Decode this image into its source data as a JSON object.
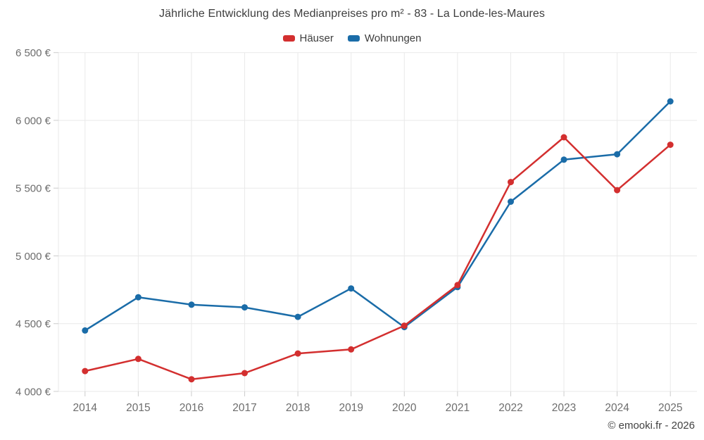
{
  "footer": {
    "text": "© emooki.fr - 2026"
  },
  "chart_data": {
    "type": "line",
    "title": "Jährliche Entwicklung des Medianpreises pro m² - 83 - La Londe-les-Maures",
    "categories": [
      "2014",
      "2015",
      "2016",
      "2017",
      "2018",
      "2019",
      "2020",
      "2021",
      "2022",
      "2023",
      "2024",
      "2025"
    ],
    "series": [
      {
        "name": "Häuser",
        "color": "#d32f2f",
        "values": [
          4150,
          4240,
          4090,
          4135,
          4280,
          4310,
          4485,
          4785,
          5545,
          5875,
          5485,
          5820
        ]
      },
      {
        "name": "Wohnungen",
        "color": "#1a6ca8",
        "values": [
          4450,
          4695,
          4640,
          4620,
          4550,
          4760,
          4475,
          4770,
          5400,
          5710,
          5750,
          6140
        ]
      }
    ],
    "xlabel": "",
    "ylabel": "",
    "ylim": [
      4000,
      6500
    ],
    "ytick_step": 500,
    "ytick_labels": [
      "4 000 €",
      "4 500 €",
      "5 000 €",
      "5 500 €",
      "6 000 €",
      "6 500 €"
    ],
    "grid": true,
    "legend_position": "top",
    "colors": {
      "grid_line": "#e9e9e9",
      "tick_mark": "#cccccc",
      "axis_label": "#6d6d6d"
    }
  }
}
